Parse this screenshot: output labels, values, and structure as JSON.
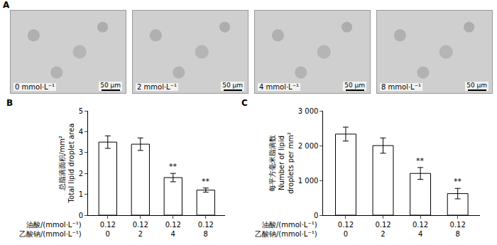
{
  "panel_a": {
    "letter": "A",
    "scale_bar": "50 μm",
    "images": [
      {
        "label": "0 mmol·L⁻¹"
      },
      {
        "label": "2 mmol·L⁻¹"
      },
      {
        "label": "4 mmol·L⁻¹"
      },
      {
        "label": "8 mmol·L⁻¹"
      }
    ]
  },
  "chart_data": [
    {
      "type": "bar",
      "letter": "B",
      "ylabel": [
        "总脂滴面积/mm²",
        "Total lipid droplet area"
      ],
      "x_rows": [
        {
          "label": "油酸/(mmol·L⁻¹)",
          "values": [
            0.12,
            0.12,
            0.12,
            0.12
          ]
        },
        {
          "label": "乙酸钠/(mmol·L⁻¹)",
          "values": [
            0,
            2,
            4,
            8
          ]
        }
      ],
      "values": [
        3.5,
        3.4,
        1.8,
        1.2
      ],
      "errors": [
        0.3,
        0.3,
        0.2,
        0.1
      ],
      "significance": [
        null,
        null,
        "**",
        "**"
      ],
      "color": "#ffffff",
      "ylim": [
        0,
        5
      ],
      "yticks": [
        0,
        1,
        2,
        3,
        4,
        5
      ],
      "grid": false
    },
    {
      "type": "bar",
      "letter": "C",
      "ylabel": [
        "每平方毫米脂滴数",
        "Number of lipid",
        "droplets per mm²"
      ],
      "x_rows": [
        {
          "label": "油酸/(mmol·L⁻¹)",
          "values": [
            0.12,
            0.12,
            0.12,
            0.12
          ]
        },
        {
          "label": "乙酸钠/(mmol·L⁻¹)",
          "values": [
            0,
            2,
            4,
            8
          ]
        }
      ],
      "values": [
        2330,
        2000,
        1200,
        620
      ],
      "errors": [
        200,
        220,
        170,
        150
      ],
      "significance": [
        null,
        null,
        "**",
        "**"
      ],
      "color": "#ffffff",
      "ylim": [
        0,
        3000
      ],
      "yticks": [
        0,
        {
          "value": 1000,
          "label": "1 000"
        },
        {
          "value": 2000,
          "label": "2 000"
        },
        {
          "value": 3000,
          "label": "3 000"
        }
      ],
      "grid": false
    }
  ]
}
